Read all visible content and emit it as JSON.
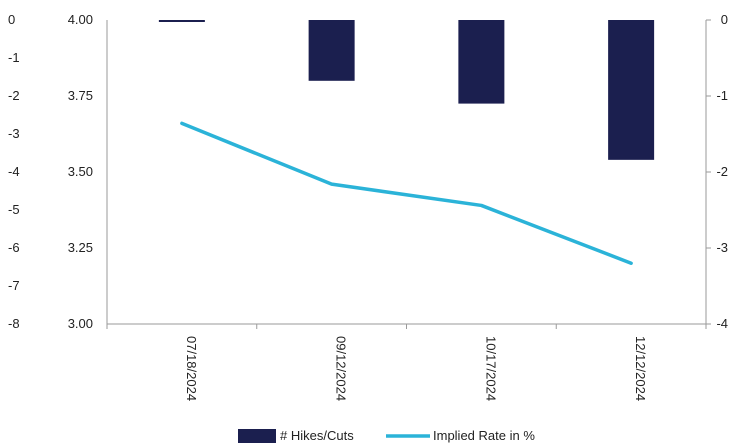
{
  "chart_data": {
    "type": "bar",
    "categories": [
      "07/18/2024",
      "09/12/2024",
      "10/17/2024",
      "12/12/2024"
    ],
    "series": [
      {
        "name": "# Hikes/Cuts",
        "type": "bar",
        "axis": "right",
        "color": "#1b1f4f",
        "values": [
          -0.02,
          -0.8,
          -1.1,
          -1.84
        ]
      },
      {
        "name": "Implied Rate in %",
        "type": "line",
        "axis": "left",
        "color": "#2bb3d8",
        "values": [
          3.66,
          3.46,
          3.39,
          3.2
        ]
      }
    ],
    "left_axis": {
      "ylim": [
        3.0,
        4.0
      ],
      "ticks": [
        "4.00",
        "3.75",
        "3.50",
        "3.25",
        "3.00"
      ]
    },
    "right_axis": {
      "ylim": [
        -4,
        0
      ],
      "ticks": [
        "0",
        "-1",
        "-2",
        "-3",
        "-4"
      ]
    },
    "outer_left_axis": {
      "ticks": [
        "0",
        "-1",
        "-2",
        "-3",
        "-4",
        "-5",
        "-6",
        "-7",
        "-8"
      ]
    },
    "legend": {
      "position": "bottom",
      "items": [
        "# Hikes/Cuts",
        "Implied Rate in %"
      ]
    },
    "grid": false
  }
}
